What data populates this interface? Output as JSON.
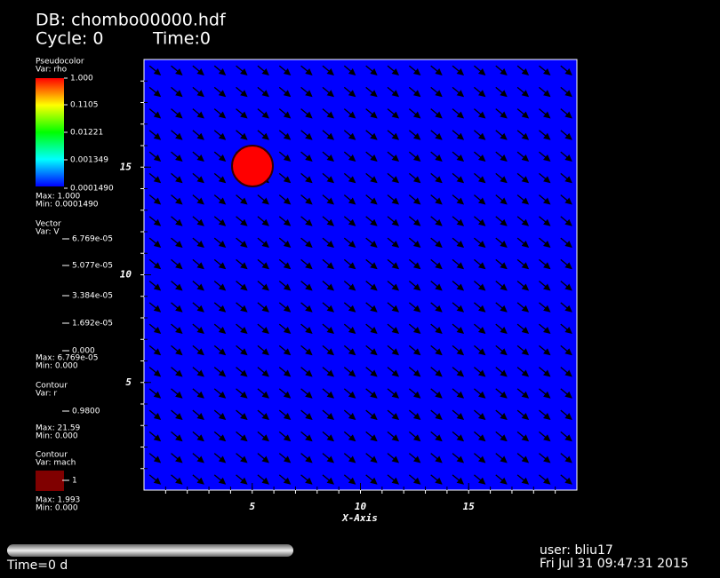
{
  "header": {
    "db": "DB: chombo00000.hdf",
    "cycle": "Cycle: 0",
    "time": "Time:0"
  },
  "legends": [
    {
      "plot": "Pseudocolor",
      "var": "Var: rho",
      "labels": [
        "1.000",
        "0.1105",
        "0.01221",
        "0.001349",
        "0.0001490"
      ],
      "max": "Max:  1.000",
      "min": "Min:  0.0001490"
    },
    {
      "plot": "Vector",
      "var": "Var: V",
      "labels": [
        "6.769e-05",
        "5.077e-05",
        "3.384e-05",
        "1.692e-05",
        "0.000"
      ],
      "max": "Max:  6.769e-05",
      "min": "Min:  0.000"
    },
    {
      "plot": "Contour",
      "var": "Var: r",
      "labels": [
        "0.9800"
      ],
      "max": "Max:  21.59",
      "min": "Min:  0.000"
    },
    {
      "plot": "Contour",
      "var": "Var: mach",
      "labels": [
        "1"
      ],
      "max": "Max:  1.993",
      "min": "Min:  0.000"
    }
  ],
  "axes": {
    "x_label": "X-Axis",
    "xlim": [
      0,
      20
    ],
    "ylim": [
      0,
      20
    ],
    "xticks": [
      5,
      10,
      15
    ],
    "yticks": [
      5,
      10,
      15
    ]
  },
  "footer": {
    "time": "Time=0 d",
    "user": "user: bliu17",
    "date": "Fri Jul 31 09:47:31 2015"
  }
}
